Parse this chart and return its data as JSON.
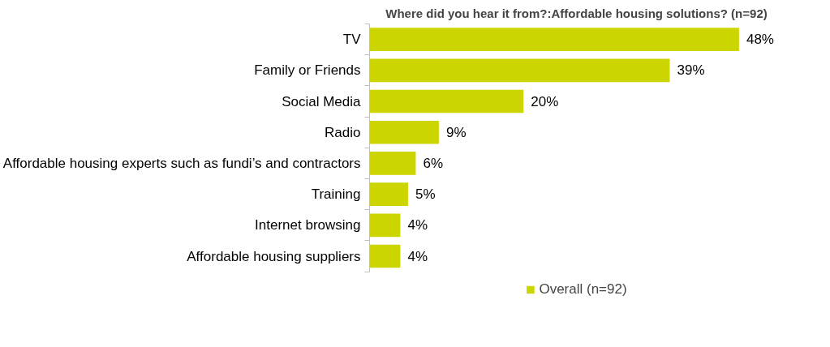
{
  "chart_data": {
    "type": "bar",
    "orientation": "horizontal",
    "title": "Where did you hear it from?:Affordable housing solutions? (n=92)",
    "categories": [
      "TV",
      "Family or Friends",
      "Social Media",
      "Radio",
      "Affordable housing experts such as fundi’s and contractors",
      "Training",
      "Internet browsing",
      "Affordable housing suppliers"
    ],
    "series": [
      {
        "name": "Overall (n=92)",
        "color": "#cdd500",
        "values": [
          48,
          39,
          20,
          9,
          6,
          5,
          4,
          4
        ],
        "value_labels": [
          "48%",
          "39%",
          "20%",
          "9%",
          "6%",
          "5%",
          "4%",
          "4%"
        ]
      }
    ],
    "legend": "bottom",
    "grid": false,
    "tick_labels": "y"
  }
}
